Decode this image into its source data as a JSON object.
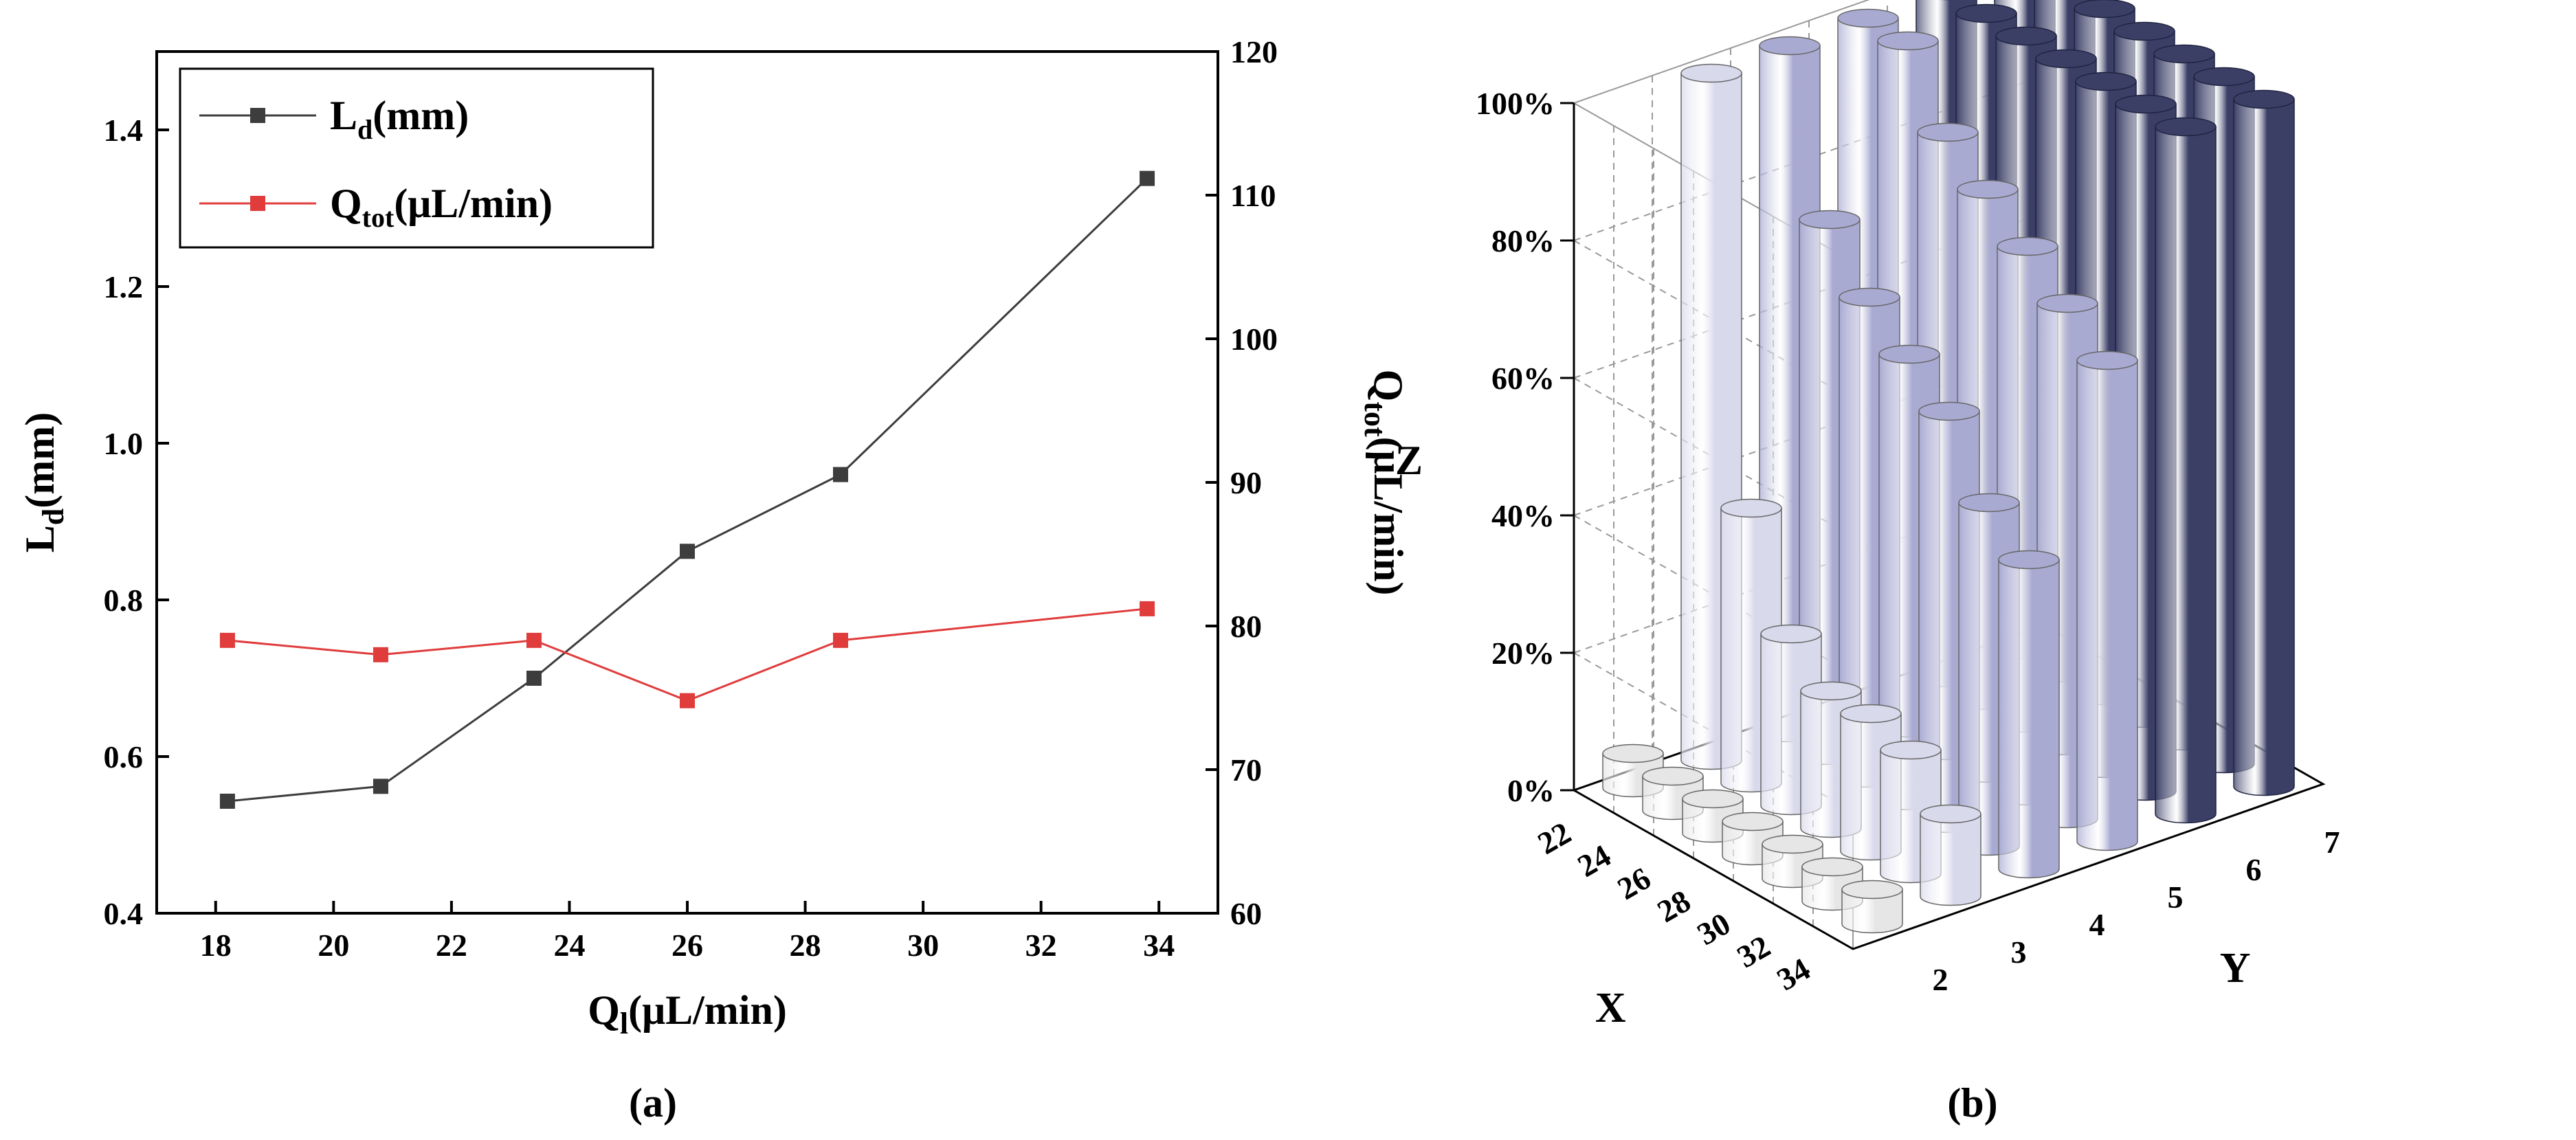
{
  "chart_data": [
    {
      "type": "line",
      "panel_label": "(a)",
      "xlabel": "Q",
      "xlabel_sub": "l",
      "xlabel_unit": "(μL/min)",
      "ylabel": "L",
      "ylabel_sub": "d",
      "ylabel_unit": "(mm)",
      "y2label": "Q",
      "y2label_sub": "tot",
      "y2label_unit": "(μL/min)",
      "xlim": [
        17,
        35
      ],
      "ylim": [
        0.4,
        1.5
      ],
      "y2lim": [
        60,
        120
      ],
      "xticks": [
        18,
        20,
        22,
        24,
        26,
        28,
        30,
        32,
        34
      ],
      "yticks": [
        0.4,
        0.6,
        0.8,
        1.0,
        1.2,
        1.4
      ],
      "y2ticks": [
        60,
        70,
        80,
        90,
        100,
        110,
        120
      ],
      "series": [
        {
          "name": "L",
          "name_sub": "d",
          "name_unit": "(mm)",
          "color": "#3d3d3d",
          "axis": "left",
          "x": [
            18.2,
            20.8,
            23.4,
            26.0,
            28.6,
            33.8
          ],
          "y": [
            0.543,
            0.562,
            0.7,
            0.862,
            0.96,
            1.338
          ]
        },
        {
          "name": "Q",
          "name_sub": "tot",
          "name_unit": "(μL/min)",
          "color": "#e03c3c",
          "axis": "right",
          "x": [
            18.2,
            20.8,
            23.4,
            26.0,
            28.6,
            33.8
          ],
          "y": [
            79.0,
            78.0,
            79.0,
            74.8,
            79.0,
            81.2
          ]
        }
      ]
    },
    {
      "type": "bar3d",
      "panel_label": "(b)",
      "xlabel": "X",
      "ylabel": "Y",
      "zlabel": "Z",
      "x_categories": [
        "22",
        "24",
        "26",
        "28",
        "30",
        "32",
        "34"
      ],
      "y_categories": [
        "2",
        "3",
        "4",
        "5",
        "6",
        "7"
      ],
      "zticks": [
        "0%",
        "20%",
        "40%",
        "60%",
        "80%",
        "100%"
      ],
      "zlim": [
        0,
        100
      ],
      "row_colors": [
        "#e6e6e6",
        "#d9d9ec",
        "#a9aad2",
        "#a9aad2",
        "#3b3f66",
        "#3b3f66"
      ],
      "values": [
        [
          5,
          100,
          100,
          100,
          100,
          100
        ],
        [
          5,
          40,
          78,
          100,
          100,
          100
        ],
        [
          5,
          25,
          70,
          90,
          100,
          100
        ],
        [
          5,
          20,
          65,
          85,
          100,
          100
        ],
        [
          5,
          20,
          60,
          80,
          100,
          100
        ],
        [
          5,
          18,
          50,
          75,
          100,
          100
        ],
        [
          5,
          12,
          45,
          70,
          100,
          100
        ]
      ]
    }
  ]
}
